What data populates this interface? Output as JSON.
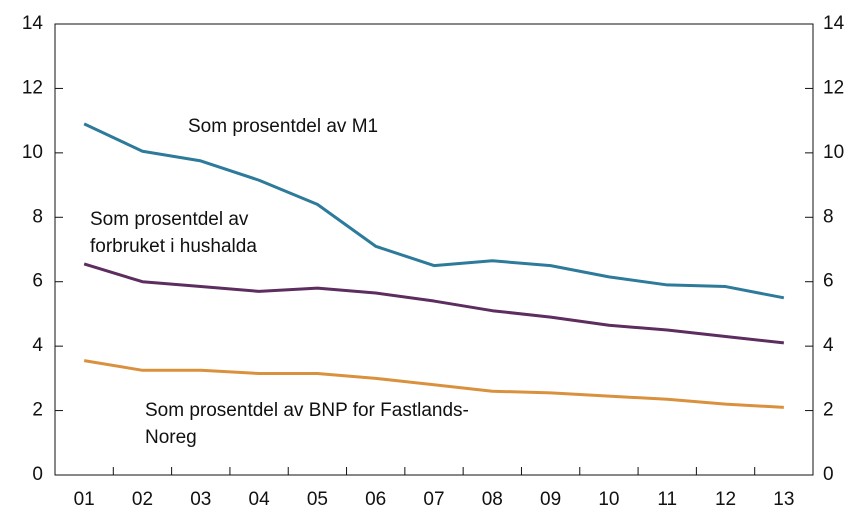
{
  "chart_data": {
    "type": "line",
    "categories": [
      "01",
      "02",
      "03",
      "04",
      "05",
      "06",
      "07",
      "08",
      "09",
      "10",
      "11",
      "12",
      "13"
    ],
    "series": [
      {
        "color": "#2e7a9a",
        "values": [
          10.9,
          10.05,
          9.75,
          9.15,
          8.4,
          7.1,
          6.5,
          6.65,
          6.5,
          6.15,
          5.9,
          5.85,
          5.5
        ]
      },
      {
        "color": "#5c2d5e",
        "values": [
          6.55,
          6.0,
          5.85,
          5.7,
          5.8,
          5.65,
          5.4,
          5.1,
          4.9,
          4.65,
          4.5,
          4.3,
          4.1
        ]
      },
      {
        "color": "#d9913e",
        "values": [
          3.55,
          3.25,
          3.25,
          3.15,
          3.15,
          3.0,
          2.8,
          2.6,
          2.55,
          2.45,
          2.35,
          2.2,
          2.1
        ]
      }
    ],
    "annotations": [
      {
        "lines": [
          "Som prosentdel av M1"
        ]
      },
      {
        "lines": [
          "Som prosentdel av",
          "forbruket i hushalda"
        ]
      },
      {
        "lines": [
          "Som prosentdel av BNP for Fastlands-",
          "Noreg"
        ]
      }
    ],
    "ylim": [
      0,
      14
    ],
    "yticks": [
      0,
      2,
      4,
      6,
      8,
      10,
      12,
      14
    ],
    "y2lim": [
      0,
      14
    ],
    "y2ticks": [
      0,
      2,
      4,
      6,
      8,
      10,
      12,
      14
    ]
  }
}
